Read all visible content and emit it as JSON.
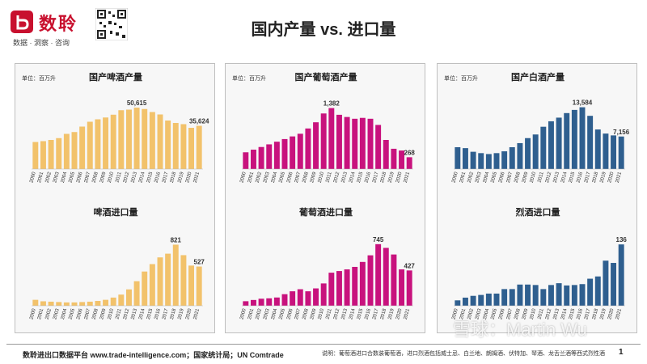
{
  "header": {
    "brand_name": "数聆",
    "brand_tagline": "数据 · 洞察 · 咨询",
    "title": "国内产量 vs. 进口量"
  },
  "footer": {
    "source": "数聆进出口数据平台 www.trade-intelligence.com；国家统计局；UN Comtrade",
    "note": "说明：葡萄酒进口合数装葡萄酒，进口烈酒包括威士忌、白兰地、朗姆酒、伏特加、琴酒、龙舌兰酒等西式烈性酒",
    "page_number": "1"
  },
  "watermark": "雪球：Martin Wu",
  "colors": {
    "beer": "#f2c26b",
    "wine": "#c8127d",
    "baijiu": "#2f5f8f"
  },
  "chart_data": [
    {
      "type": "bar",
      "title": "国产啤酒产量",
      "unit_label": "单位：百万升",
      "color": "#f2c26b",
      "categories": [
        "2000",
        "2001",
        "2002",
        "2003",
        "2004",
        "2005",
        "2006",
        "2007",
        "2008",
        "2009",
        "2010",
        "2011",
        "2012",
        "2013",
        "2014",
        "2015",
        "2016",
        "2017",
        "2018",
        "2019",
        "2020",
        "2021"
      ],
      "values": [
        22300,
        23000,
        24000,
        25500,
        29000,
        30500,
        35000,
        39000,
        41000,
        42500,
        44800,
        48500,
        49000,
        50615,
        49500,
        47000,
        45000,
        40000,
        38000,
        37000,
        34000,
        35624
      ],
      "data_labels": {
        "13": "50,615",
        "21": "35,624"
      },
      "ylim": [
        0,
        60000
      ]
    },
    {
      "type": "bar",
      "title": "啤酒进口量",
      "unit_label": "",
      "color": "#f2c26b",
      "categories": [
        "2000",
        "2001",
        "2002",
        "2003",
        "2004",
        "2005",
        "2006",
        "2007",
        "2008",
        "2009",
        "2010",
        "2011",
        "2012",
        "2013",
        "2014",
        "2015",
        "2016",
        "2017",
        "2018",
        "2019",
        "2020",
        "2021"
      ],
      "values": [
        80,
        60,
        55,
        50,
        45,
        45,
        50,
        55,
        65,
        80,
        110,
        150,
        220,
        330,
        460,
        560,
        650,
        700,
        821,
        680,
        540,
        527
      ],
      "data_labels": {
        "18": "821",
        "21": "527"
      },
      "ylim": [
        0,
        1000
      ]
    },
    {
      "type": "bar",
      "title": "国产葡萄酒产量",
      "unit_label": "单位：百万升",
      "color": "#c8127d",
      "categories": [
        "2000",
        "2001",
        "2002",
        "2003",
        "2004",
        "2005",
        "2006",
        "2007",
        "2008",
        "2009",
        "2010",
        "2011",
        "2012",
        "2013",
        "2014",
        "2015",
        "2016",
        "2017",
        "2018",
        "2019",
        "2020",
        "2021"
      ],
      "values": [
        380,
        440,
        500,
        560,
        620,
        680,
        740,
        800,
        920,
        1060,
        1260,
        1382,
        1230,
        1180,
        1140,
        1160,
        1140,
        1000,
        660,
        460,
        420,
        268
      ],
      "data_labels": {
        "11": "1,382",
        "21": "268"
      },
      "ylim": [
        0,
        1650
      ]
    },
    {
      "type": "bar",
      "title": "葡萄酒进口量",
      "unit_label": "",
      "color": "#c8127d",
      "categories": [
        "2000",
        "2001",
        "2002",
        "2003",
        "2004",
        "2005",
        "2006",
        "2007",
        "2008",
        "2009",
        "2010",
        "2011",
        "2012",
        "2013",
        "2014",
        "2015",
        "2016",
        "2017",
        "2018",
        "2019",
        "2020",
        "2021"
      ],
      "values": [
        55,
        70,
        85,
        90,
        100,
        140,
        175,
        200,
        175,
        210,
        270,
        400,
        420,
        440,
        470,
        530,
        610,
        745,
        700,
        620,
        440,
        427
      ],
      "data_labels": {
        "17": "745",
        "21": "427"
      },
      "ylim": [
        0,
        900
      ]
    },
    {
      "type": "bar",
      "title": "国产白酒产量",
      "unit_label": "单位：百万升",
      "color": "#2f5f8f",
      "categories": [
        "2000",
        "2001",
        "2002",
        "2003",
        "2004",
        "2005",
        "2006",
        "2007",
        "2008",
        "2009",
        "2010",
        "2011",
        "2012",
        "2013",
        "2014",
        "2015",
        "2016",
        "2017",
        "2018",
        "2019",
        "2020",
        "2021"
      ],
      "values": [
        4800,
        4600,
        3800,
        3500,
        3300,
        3500,
        3900,
        4800,
        5700,
        6800,
        7600,
        9300,
        10500,
        11300,
        12300,
        13000,
        13584,
        11700,
        8700,
        7800,
        7400,
        7156
      ],
      "data_labels": {
        "16": "13,584",
        "21": "7,156"
      },
      "ylim": [
        0,
        16000
      ]
    },
    {
      "type": "bar",
      "title": "烈酒进口量",
      "unit_label": "",
      "color": "#2f5f8f",
      "categories": [
        "2000",
        "2001",
        "2002",
        "2003",
        "2004",
        "2005",
        "2006",
        "2007",
        "2008",
        "2009",
        "2010",
        "2011",
        "2012",
        "2013",
        "2014",
        "2015",
        "2016",
        "2017",
        "2018",
        "2019",
        "2020",
        "2021"
      ],
      "values": [
        12,
        18,
        22,
        24,
        27,
        27,
        37,
        37,
        47,
        47,
        46,
        37,
        46,
        50,
        45,
        46,
        48,
        60,
        65,
        100,
        95,
        136
      ],
      "data_labels": {
        "21": "136"
      },
      "ylim": [
        0,
        165
      ]
    }
  ]
}
